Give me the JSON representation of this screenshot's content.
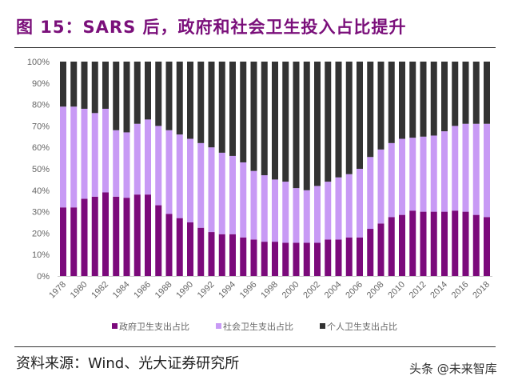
{
  "title": "图 15：SARS 后，政府和社会卫生投入占比提升",
  "source": "资料来源：Wind、光大证券研究所",
  "watermark": "头条 @未来智库",
  "chart_data": {
    "type": "bar",
    "stacked": true,
    "title": "图 15：SARS 后，政府和社会卫生投入占比提升",
    "xlabel": "",
    "ylabel": "",
    "ylim": [
      0,
      100
    ],
    "y_tick_labels": [
      "0%",
      "10%",
      "20%",
      "30%",
      "40%",
      "50%",
      "60%",
      "70%",
      "80%",
      "90%",
      "100%"
    ],
    "x_tick_labels": [
      "1978",
      "1980",
      "1982",
      "1984",
      "1986",
      "1988",
      "1990",
      "1992",
      "1994",
      "1996",
      "1998",
      "2000",
      "2002",
      "2004",
      "2006",
      "2008",
      "2010",
      "2012",
      "2014",
      "2016",
      "2018"
    ],
    "grid": false,
    "legend_position": "bottom",
    "categories": [
      "1978",
      "1979",
      "1980",
      "1981",
      "1982",
      "1983",
      "1984",
      "1985",
      "1986",
      "1987",
      "1988",
      "1989",
      "1990",
      "1991",
      "1992",
      "1993",
      "1994",
      "1995",
      "1996",
      "1997",
      "1998",
      "1999",
      "2000",
      "2001",
      "2002",
      "2003",
      "2004",
      "2005",
      "2006",
      "2007",
      "2008",
      "2009",
      "2010",
      "2011",
      "2012",
      "2013",
      "2014",
      "2015",
      "2016",
      "2017",
      "2018"
    ],
    "series": [
      {
        "name": "政府卫生支出占比",
        "color": "#7b0a7b",
        "values": [
          32,
          32,
          36,
          37,
          39,
          37,
          36.5,
          38,
          38,
          33,
          29,
          27,
          25,
          22.5,
          20.5,
          19.5,
          19.5,
          18,
          17,
          16,
          16,
          15.5,
          15.5,
          15.5,
          15.5,
          17,
          17,
          18,
          18,
          22,
          24.5,
          27.5,
          28.5,
          30.5,
          30,
          30,
          30,
          30.5,
          30,
          28.5,
          27.5
        ]
      },
      {
        "name": "社会卫生支出占比",
        "color": "#c89af5",
        "values": [
          47,
          47,
          42,
          39,
          39,
          31,
          30.5,
          33,
          35,
          37,
          39,
          39,
          39,
          39.5,
          39.5,
          38,
          36.5,
          35,
          32,
          31,
          29,
          28.5,
          25.5,
          24.5,
          26.5,
          27,
          29,
          29.5,
          32,
          33.5,
          34.5,
          34.5,
          35.5,
          34,
          35,
          35.5,
          37.5,
          39.5,
          41,
          42.5,
          43.5
        ]
      },
      {
        "name": "个人卫生支出占比",
        "color": "#333333",
        "values": [
          21,
          21,
          22,
          24,
          22,
          32,
          33,
          29,
          27,
          30,
          32,
          34,
          36,
          38,
          40,
          42.5,
          44,
          47,
          51,
          53,
          55,
          56,
          59,
          60,
          58,
          56,
          54,
          52.5,
          50,
          44.5,
          41,
          38,
          36,
          35.5,
          35,
          34.5,
          32.5,
          30,
          29,
          29,
          29
        ]
      }
    ]
  }
}
